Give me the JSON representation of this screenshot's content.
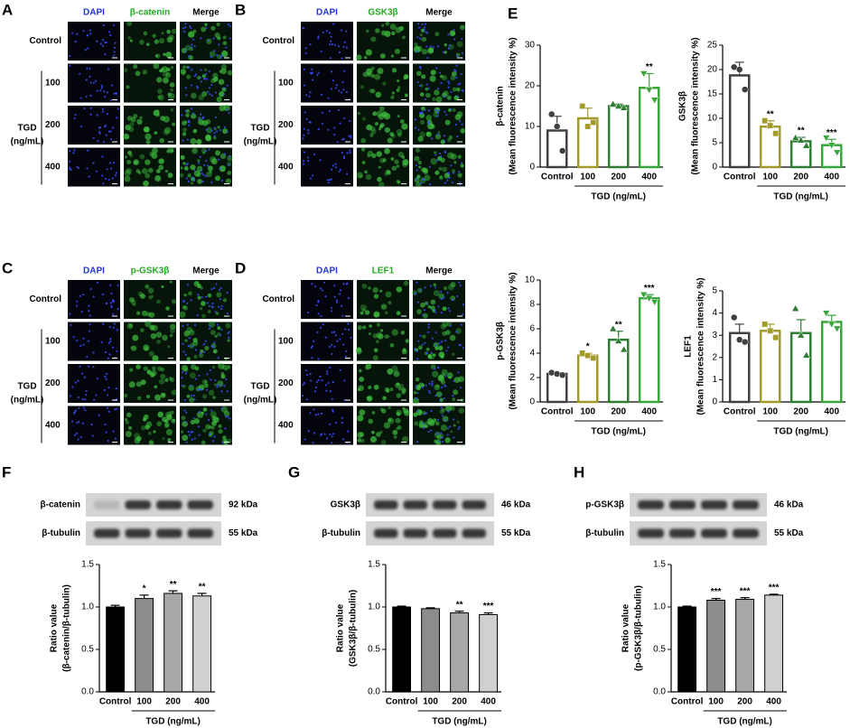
{
  "microscopy_panels": [
    {
      "letter": "A",
      "columns": [
        "DAPI",
        "β-catenin",
        "Merge"
      ],
      "rows": [
        "Control",
        "100",
        "200",
        "400"
      ],
      "group": [
        "TGD",
        "(ng/mL)"
      ]
    },
    {
      "letter": "B",
      "columns": [
        "DAPI",
        "GSK3β",
        "Merge"
      ],
      "rows": [
        "Control",
        "100",
        "200",
        "400"
      ],
      "group": [
        "TGD",
        "(ng/mL)"
      ]
    },
    {
      "letter": "C",
      "columns": [
        "DAPI",
        "p-GSK3β",
        "Merge"
      ],
      "rows": [
        "Control",
        "100",
        "200",
        "400"
      ],
      "group": [
        "TGD",
        "(ng/mL)"
      ]
    },
    {
      "letter": "D",
      "columns": [
        "DAPI",
        "LEF1",
        "Merge"
      ],
      "rows": [
        "Control",
        "100",
        "200",
        "400"
      ],
      "group": [
        "TGD",
        "(ng/mL)"
      ]
    }
  ],
  "blots": [
    {
      "letter": "F",
      "bands": [
        {
          "protein": "β-catenin",
          "size": "92 kDa"
        },
        {
          "protein": "β-tubulin",
          "size": "55 kDa"
        }
      ]
    },
    {
      "letter": "G",
      "bands": [
        {
          "protein": "GSK3β",
          "size": "46 kDa"
        },
        {
          "protein": "β-tubulin",
          "size": "55 kDa"
        }
      ]
    },
    {
      "letter": "H",
      "bands": [
        {
          "protein": "p-GSK3β",
          "size": "46 kDa"
        },
        {
          "protein": "β-tubulin",
          "size": "55 kDa"
        }
      ]
    }
  ],
  "chart_data": [
    {
      "type": "bar",
      "panel": "E",
      "bar_style": "outline",
      "categories": [
        "Control",
        "100",
        "200",
        "400"
      ],
      "xlabel": "TGD (ng/mL)",
      "ylabel": [
        "β-catenin",
        "(Mean fluorescence intensity %)"
      ],
      "values": [
        9,
        12,
        15,
        19.5
      ],
      "errors": [
        3.5,
        2.5,
        0.5,
        3.5
      ],
      "points": [
        [
          13,
          10,
          4
        ],
        [
          15,
          10,
          11
        ],
        [
          15.5,
          15,
          14.6
        ],
        [
          23,
          19,
          16.5
        ]
      ],
      "annotations": [
        null,
        null,
        null,
        "**"
      ],
      "colors": [
        "#404040",
        "#a39a2c",
        "#2e7d32",
        "#3aa53a"
      ],
      "ylim": [
        0,
        30
      ],
      "yticks": [
        0,
        10,
        20,
        30
      ]
    },
    {
      "type": "bar",
      "bar_style": "outline",
      "categories": [
        "Control",
        "100",
        "200",
        "400"
      ],
      "xlabel": "TGD (ng/mL)",
      "ylabel": [
        "GSK3β",
        "(Mean fluorescence intensity %)"
      ],
      "values": [
        18.8,
        8.3,
        5.3,
        4.5
      ],
      "errors": [
        2.7,
        1.2,
        0.8,
        1.2
      ],
      "points": [
        [
          20.5,
          20,
          15.9
        ],
        [
          9.5,
          8.5,
          6.9
        ],
        [
          6,
          5.5,
          4.4
        ],
        [
          6,
          4.5,
          3
        ]
      ],
      "annotations": [
        null,
        "**",
        "**",
        "***"
      ],
      "colors": [
        "#404040",
        "#a39a2c",
        "#2e7d32",
        "#3aa53a"
      ],
      "ylim": [
        0,
        25
      ],
      "yticks": [
        0,
        5,
        10,
        15,
        20,
        25
      ]
    },
    {
      "type": "bar",
      "bar_style": "outline",
      "categories": [
        "Control",
        "100",
        "200",
        "400"
      ],
      "xlabel": "TGD (ng/mL)",
      "ylabel": [
        "p-GSK3β",
        "(Mean fluorescence intensity %)"
      ],
      "values": [
        2.3,
        3.8,
        5.1,
        8.5
      ],
      "errors": [
        0.1,
        0.2,
        0.7,
        0.3
      ],
      "points": [
        [
          2.4,
          2.3,
          2.2
        ],
        [
          4.0,
          3.8,
          3.6
        ],
        [
          6,
          5,
          4.3
        ],
        [
          8.8,
          8.5,
          8.2
        ]
      ],
      "annotations": [
        null,
        "*",
        "**",
        "***"
      ],
      "colors": [
        "#404040",
        "#a39a2c",
        "#2e7d32",
        "#3aa53a"
      ],
      "ylim": [
        0,
        10
      ],
      "yticks": [
        0,
        2,
        4,
        6,
        8,
        10
      ]
    },
    {
      "type": "bar",
      "bar_style": "outline",
      "categories": [
        "Control",
        "100",
        "200",
        "400"
      ],
      "xlabel": "TGD (ng/mL)",
      "ylabel": [
        "LEF1",
        "(Mean fluorescence intensity %)"
      ],
      "values": [
        3.1,
        3.2,
        3.1,
        3.6
      ],
      "errors": [
        0.4,
        0.3,
        0.6,
        0.3
      ],
      "points": [
        [
          3.8,
          2.8,
          2.7
        ],
        [
          3.5,
          3.2,
          2.9
        ],
        [
          4.2,
          3,
          2.1
        ],
        [
          4.0,
          3.5,
          3.3
        ]
      ],
      "annotations": [
        null,
        null,
        null,
        null
      ],
      "colors": [
        "#404040",
        "#a39a2c",
        "#2e7d32",
        "#3aa53a"
      ],
      "ylim": [
        0,
        5
      ],
      "yticks": [
        0,
        1,
        2,
        3,
        4,
        5
      ]
    },
    {
      "type": "bar",
      "bar_style": "solid",
      "categories": [
        "Control",
        "100",
        "200",
        "400"
      ],
      "xlabel": "TGD (ng/mL)",
      "ylabel": [
        "Ratio value",
        "(β-catenin/β-tubulin)"
      ],
      "values": [
        1.0,
        1.1,
        1.16,
        1.13
      ],
      "errors": [
        0.02,
        0.04,
        0.03,
        0.03
      ],
      "annotations": [
        null,
        "*",
        "**",
        "**"
      ],
      "colors": [
        "#000000",
        "#8c8c8c",
        "#a8a8a8",
        "#d0d0d0"
      ],
      "ylim": [
        0,
        1.5
      ],
      "yticks": [
        {
          "value": 0,
          "label": "0.0"
        },
        {
          "value": 0.5,
          "label": "0.5"
        },
        {
          "value": 1,
          "label": "1.0"
        },
        {
          "value": 1.5,
          "label": "1.5"
        }
      ]
    },
    {
      "type": "bar",
      "bar_style": "solid",
      "categories": [
        "Control",
        "100",
        "200",
        "400"
      ],
      "xlabel": "TGD (ng/mL)",
      "ylabel": [
        "Ratio value",
        "(GSK3β/β-tubulin)"
      ],
      "values": [
        1.0,
        0.98,
        0.93,
        0.91
      ],
      "errors": [
        0.01,
        0.01,
        0.02,
        0.02
      ],
      "annotations": [
        null,
        null,
        "**",
        "***"
      ],
      "colors": [
        "#000000",
        "#8c8c8c",
        "#a8a8a8",
        "#d0d0d0"
      ],
      "ylim": [
        0,
        1.5
      ],
      "yticks": [
        {
          "value": 0,
          "label": "0.0"
        },
        {
          "value": 0.5,
          "label": "0.5"
        },
        {
          "value": 1,
          "label": "1.0"
        },
        {
          "value": 1.5,
          "label": "1.5"
        }
      ]
    },
    {
      "type": "bar",
      "bar_style": "solid",
      "categories": [
        "Control",
        "100",
        "200",
        "400"
      ],
      "xlabel": "TGD (ng/mL)",
      "ylabel": [
        "Ratio value",
        "(p-GSK3β/β-tubulin)"
      ],
      "values": [
        1.0,
        1.08,
        1.09,
        1.14
      ],
      "errors": [
        0.01,
        0.02,
        0.02,
        0.01
      ],
      "annotations": [
        null,
        "***",
        "***",
        "***"
      ],
      "colors": [
        "#000000",
        "#8c8c8c",
        "#a8a8a8",
        "#d0d0d0"
      ],
      "ylim": [
        0,
        1.5
      ],
      "yticks": [
        {
          "value": 0,
          "label": "0.0"
        },
        {
          "value": 0.5,
          "label": "0.5"
        },
        {
          "value": 1,
          "label": "1.0"
        },
        {
          "value": 1.5,
          "label": "1.5"
        }
      ]
    }
  ]
}
